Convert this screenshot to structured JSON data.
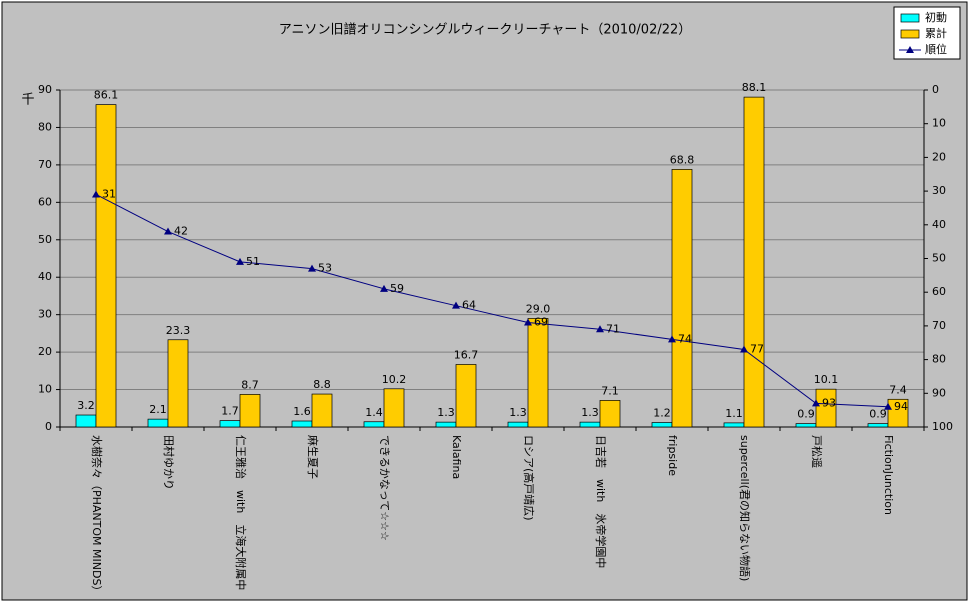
{
  "chart_data": {
    "type": "bar-line",
    "title": "アニソン旧譜オリコンシングルウィークリーチャート（2010/02/22）",
    "y_label": "千",
    "categories": [
      "水樹奈々（PHANTOM MINDS）",
      "田村ゆかり",
      "仁王雅治　with　立海大附属中",
      "麻生夏子",
      "できるかなって☆☆☆",
      "Kalafina",
      "ロシア(高戸靖広)",
      "日吉若　with　氷帝学園中",
      "fripside",
      "supercell(君の知らない物語)",
      "戸松遥",
      "FictionJunction"
    ],
    "series": [
      {
        "name": "初動",
        "color": "#00ffff",
        "values": [
          3.2,
          2.1,
          1.7,
          1.6,
          1.4,
          1.3,
          1.3,
          1.3,
          1.2,
          1.1,
          0.9,
          0.9
        ]
      },
      {
        "name": "累計",
        "color": "#ffcc00",
        "values": [
          86.1,
          23.3,
          8.7,
          8.8,
          10.2,
          16.7,
          29.0,
          7.1,
          68.8,
          88.1,
          10.1,
          7.4
        ],
        "value_labels": [
          "86.1",
          "23.3",
          "8.7",
          "8.8",
          "10.2",
          "16.7",
          "29.0",
          "7.1",
          "68.8",
          "88.1",
          "10.1",
          "7.4"
        ]
      },
      {
        "name": "順位",
        "color": "#000080",
        "axis": "y2",
        "values": [
          31,
          42,
          51,
          53,
          59,
          64,
          69,
          71,
          74,
          77,
          93,
          94
        ]
      }
    ],
    "ylim": [
      0,
      90
    ],
    "yticks": [
      0,
      10,
      20,
      30,
      40,
      50,
      60,
      70,
      80,
      90
    ],
    "y2lim": [
      100,
      0
    ],
    "y2ticks": [
      0,
      10,
      20,
      30,
      40,
      50,
      60,
      70,
      80,
      90,
      100
    ],
    "grid": true
  }
}
